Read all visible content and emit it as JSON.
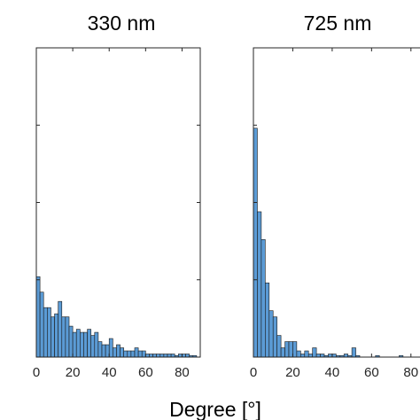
{
  "xlabel": "Degree [°]",
  "chart_data": [
    {
      "type": "bar",
      "title": "330 nm",
      "bin_width": 2,
      "xlim": [
        0,
        90
      ],
      "xticks": [
        0,
        20,
        40,
        60,
        80
      ],
      "ylim": [
        0,
        100
      ],
      "grid": false,
      "bar_color": "#5b9bd5",
      "x": [
        1,
        3,
        5,
        7,
        9,
        11,
        13,
        15,
        17,
        19,
        21,
        23,
        25,
        27,
        29,
        31,
        33,
        35,
        37,
        39,
        41,
        43,
        45,
        47,
        49,
        51,
        53,
        55,
        57,
        59,
        61,
        63,
        65,
        67,
        69,
        71,
        73,
        75,
        77,
        79,
        81,
        83,
        85,
        87
      ],
      "values": [
        26,
        21,
        16,
        16,
        13,
        14,
        18,
        13,
        13,
        10,
        8,
        9,
        8,
        8,
        9,
        7,
        8,
        5,
        4,
        4,
        6,
        3,
        4,
        3,
        2,
        2,
        2,
        3,
        2,
        2,
        1,
        1,
        1,
        1,
        1,
        1,
        1,
        1,
        0.5,
        1,
        1,
        1,
        0.5,
        0.5
      ]
    },
    {
      "type": "bar",
      "title": "725 nm",
      "bin_width": 2,
      "xlim": [
        0,
        90
      ],
      "xticks": [
        0,
        20,
        40,
        60,
        80
      ],
      "ylim": [
        0,
        100
      ],
      "grid": false,
      "bar_color": "#5b9bd5",
      "x": [
        1,
        3,
        5,
        7,
        9,
        11,
        13,
        15,
        17,
        19,
        21,
        23,
        25,
        27,
        29,
        31,
        33,
        35,
        37,
        39,
        41,
        43,
        45,
        47,
        49,
        51,
        53,
        55,
        57,
        59,
        61,
        63,
        65,
        67,
        69,
        71,
        73,
        75,
        77,
        79,
        81,
        83,
        85,
        87
      ],
      "values": [
        74,
        47,
        38,
        24,
        15,
        13,
        7,
        3,
        5,
        5,
        5,
        2,
        1,
        2,
        1,
        3,
        1,
        1,
        0.5,
        1,
        1,
        0.5,
        0.5,
        1,
        0.5,
        3,
        0.5,
        0,
        0,
        0,
        0,
        0.5,
        0,
        0,
        0,
        0,
        0,
        0.5,
        0,
        0,
        0,
        0,
        0,
        0
      ]
    }
  ]
}
